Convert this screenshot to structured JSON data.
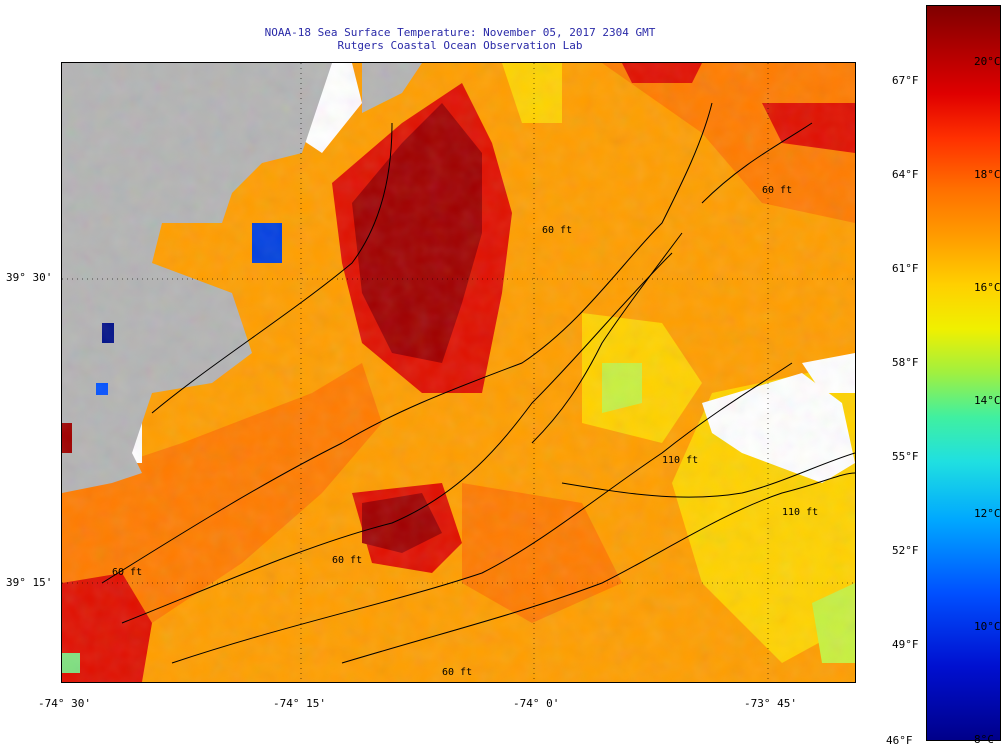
{
  "title": {
    "line1": "NOAA-18 Sea Surface Temperature:  November 05, 2017 2304 GMT",
    "line2": "Rutgers Coastal Ocean Observation Lab"
  },
  "axes": {
    "x_ticks": [
      "-74° 30'",
      "-74° 15'",
      "-74° 0'",
      "-73° 45'"
    ],
    "y_ticks": [
      "39° 30'",
      "39° 15'"
    ]
  },
  "colorbar": {
    "fahrenheit": [
      "67°F",
      "64°F",
      "61°F",
      "58°F",
      "55°F",
      "52°F",
      "49°F",
      "46°F"
    ],
    "celsius": [
      "20°C",
      "18°C",
      "16°C",
      "14°C",
      "12°C",
      "10°C",
      "8°C"
    ],
    "range_f": [
      46,
      69
    ],
    "colors": [
      "#00008a",
      "#0050ff",
      "#20e0e0",
      "#f0f000",
      "#ffa000",
      "#ff3000",
      "#800000"
    ]
  },
  "contours": {
    "labels": [
      "60 ft",
      "60 ft",
      "110 ft",
      "110 ft",
      "60 ft",
      "60 ft",
      "60 ft"
    ]
  },
  "map": {
    "land_color": "#b4b4b4",
    "cloud_color": "#ffffff",
    "contour_color": "#000000"
  }
}
